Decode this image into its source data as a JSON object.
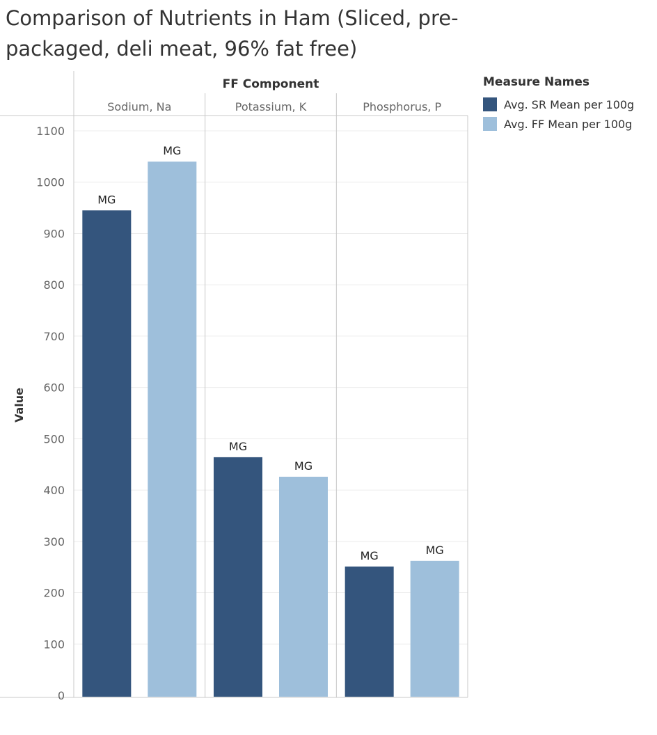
{
  "title": "Comparison of Nutrients in Ham (Sliced, pre-packaged, deli meat, 96% fat free)",
  "legend": {
    "title": "Measure Names",
    "items": [
      {
        "label": "Avg. SR Mean per 100g",
        "color": "#34557d"
      },
      {
        "label": "Avg. FF Mean per 100g",
        "color": "#9ebfdb"
      }
    ]
  },
  "chart_data": {
    "type": "bar",
    "column_header": "FF Component",
    "categories": [
      "Sodium, Na",
      "Potassium, K",
      "Phosphorus, P"
    ],
    "series": [
      {
        "name": "Avg. SR Mean per 100g",
        "color": "#34557d",
        "values": [
          945,
          464,
          251
        ],
        "labels": [
          "MG",
          "MG",
          "MG"
        ]
      },
      {
        "name": "Avg. FF Mean per 100g",
        "color": "#9ebfdb",
        "values": [
          1040,
          426,
          262
        ],
        "labels": [
          "MG",
          "MG",
          "MG"
        ]
      }
    ],
    "ylabel": "Value",
    "yticks": [
      0,
      100,
      200,
      300,
      400,
      500,
      600,
      700,
      800,
      900,
      1000,
      1100
    ],
    "ylim": [
      0,
      1100
    ],
    "grid": true
  }
}
